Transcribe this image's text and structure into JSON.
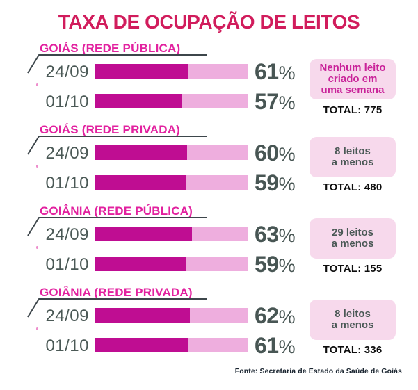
{
  "title": "TAXA DE OCUPAÇÃO DE LEITOS",
  "footer": "Fonte: Secretaria de Estado da Saúde de Goiás",
  "colors": {
    "title_text": "#d11c5c",
    "section_label": "#e2219f",
    "bar_fill": "#bf0d92",
    "bar_track": "#eeaede",
    "value_text": "#485654",
    "note_box_bg": "#f7d9ec",
    "note_text_highlight": "#c92399",
    "note_text": "#4b5956",
    "total_text": "#0d0d0d",
    "axis_line": "#3d464b"
  },
  "sections": [
    {
      "label": "GOIÁS (REDE PÚBLICA)",
      "rows": [
        {
          "date": "24/09",
          "value": "61",
          "unit": "%",
          "pct": 61
        },
        {
          "date": "01/10",
          "value": "57",
          "unit": "%",
          "pct": 57
        }
      ],
      "note_lines": [
        "Nenhum leito",
        "criado em",
        "uma semana"
      ],
      "total_label": "TOTAL: 775"
    },
    {
      "label": "GOIÁS (REDE PRIVADA)",
      "rows": [
        {
          "date": "24/09",
          "value": "60",
          "unit": "%",
          "pct": 60
        },
        {
          "date": "01/10",
          "value": "59",
          "unit": "%",
          "pct": 59
        }
      ],
      "note_lines": [
        "8 leitos",
        "a menos"
      ],
      "total_label": "TOTAL: 480"
    },
    {
      "label": "GOIÂNIA (REDE PÚBLICA)",
      "rows": [
        {
          "date": "24/09",
          "value": "63",
          "unit": "%",
          "pct": 63
        },
        {
          "date": "01/10",
          "value": "59",
          "unit": "%",
          "pct": 59
        }
      ],
      "note_lines": [
        "29 leitos",
        "a menos"
      ],
      "total_label": "TOTAL: 155"
    },
    {
      "label": "GOIÂNIA (REDE PRIVADA)",
      "rows": [
        {
          "date": "24/09",
          "value": "62",
          "unit": "%",
          "pct": 62
        },
        {
          "date": "01/10",
          "value": "61",
          "unit": "%",
          "pct": 61
        }
      ],
      "note_lines": [
        "8 leitos",
        "a menos"
      ],
      "total_label": "TOTAL: 336"
    }
  ],
  "chart_data": {
    "type": "bar",
    "title": "TAXA DE OCUPAÇÃO DE LEITOS",
    "unit": "%",
    "categories": [
      "24/09",
      "01/10"
    ],
    "xlim": [
      0,
      100
    ],
    "orientation": "horizontal",
    "groups": [
      {
        "label": "GOIÁS (REDE PÚBLICA)",
        "values": [
          61,
          57
        ],
        "note": "Nenhum leito criado em uma semana",
        "total": 775
      },
      {
        "label": "GOIÁS (REDE PRIVADA)",
        "values": [
          60,
          59
        ],
        "note": "8 leitos a menos",
        "total": 480
      },
      {
        "label": "GOIÂNIA (REDE PÚBLICA)",
        "values": [
          63,
          59
        ],
        "note": "29 leitos a menos",
        "total": 155
      },
      {
        "label": "GOIÂNIA (REDE PRIVADA)",
        "values": [
          62,
          61
        ],
        "note": "8 leitos a menos",
        "total": 336
      }
    ],
    "source": "Fonte: Secretaria de Estado da Saúde de Goiás"
  }
}
